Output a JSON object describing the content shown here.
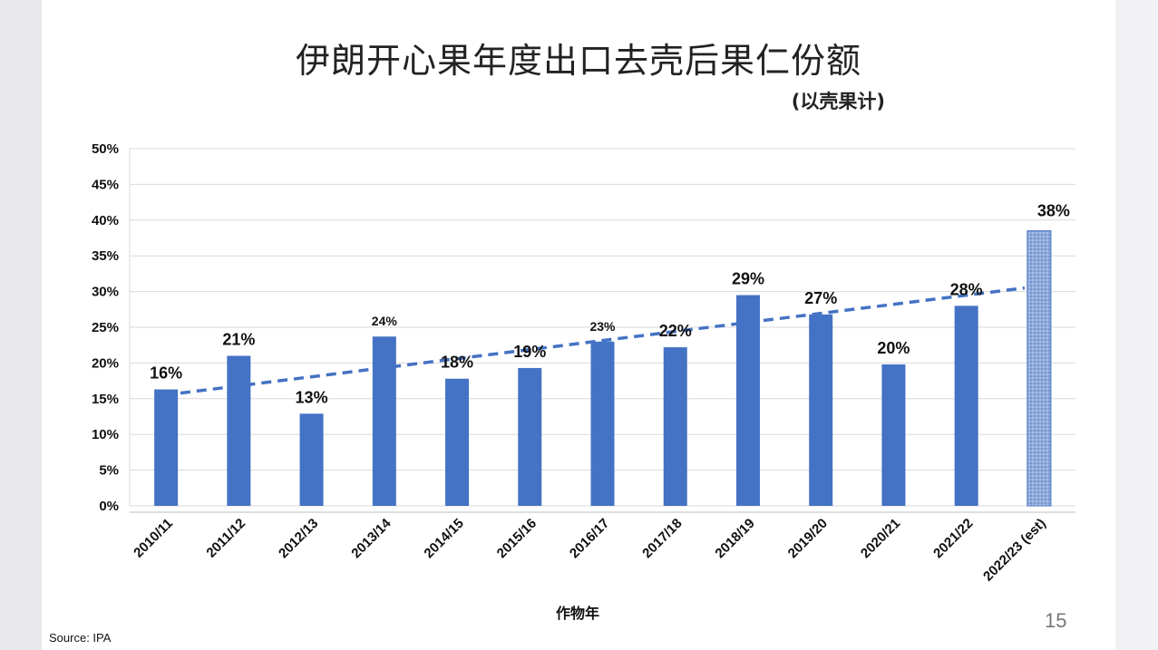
{
  "slide": {
    "title": "伊朗开心果年度出口去壳后果仁份额",
    "subtitle": "(以壳果计)",
    "page_number": "15",
    "source": "Source: IPA"
  },
  "chart_data": {
    "type": "bar",
    "title": "伊朗开心果年度出口去壳后果仁份额",
    "subtitle": "(以壳果计)",
    "xlabel": "作物年",
    "ylabel": "",
    "ylim": [
      0,
      50
    ],
    "yticks": [
      "0%",
      "5%",
      "10%",
      "15%",
      "20%",
      "25%",
      "30%",
      "35%",
      "40%",
      "45%",
      "50%"
    ],
    "grid": true,
    "categories": [
      "2010/11",
      "2011/12",
      "2012/13",
      "2013/14",
      "2014/15",
      "2015/16",
      "2016/17",
      "2017/18",
      "2018/19",
      "2019/20",
      "2020/21",
      "2021/22",
      "2022/23 (est)"
    ],
    "values": [
      16.3,
      21,
      12.9,
      23.7,
      17.8,
      19.3,
      23,
      22.2,
      29.5,
      26.8,
      19.8,
      28,
      38.5
    ],
    "labels": [
      "16%",
      "21%",
      "13%",
      "24%",
      "18%",
      "19%",
      "23%",
      "22%",
      "29%",
      "27%",
      "20%",
      "28%",
      "38%"
    ],
    "estimated_index": 12,
    "trendline": {
      "style": "dashed",
      "start": 15.5,
      "end": 30.5
    },
    "colors": {
      "bar": "#4472c4",
      "estimated_bar": "#8eaadb",
      "trend": "#4472c4"
    }
  }
}
